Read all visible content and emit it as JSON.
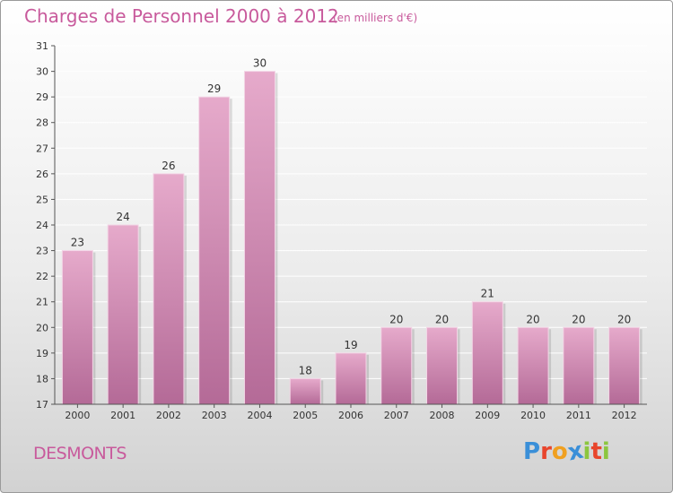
{
  "header": {
    "title": "Charges de Personnel 2000 à 2012",
    "subtitle": "(en milliers d'€)"
  },
  "footer": {
    "commune": "DESMONTS",
    "logo_text": "Proxiti",
    "logo_colors": [
      "#3a8fd8",
      "#e8452c",
      "#f0a020",
      "#3a8fd8",
      "#8cc63f",
      "#e8452c",
      "#8cc63f"
    ]
  },
  "colors": {
    "accent": "#c85a9c",
    "bar_top": "#e6aacb",
    "bar_bottom": "#b46a97",
    "axis": "#555555"
  },
  "chart_data": {
    "type": "bar",
    "title": "Charges de Personnel 2000 à 2012",
    "subtitle": "(en milliers d'€)",
    "categories": [
      "2000",
      "2001",
      "2002",
      "2003",
      "2004",
      "2005",
      "2006",
      "2007",
      "2008",
      "2009",
      "2010",
      "2011",
      "2012"
    ],
    "values": [
      23,
      24,
      26,
      29,
      30,
      18,
      19,
      20,
      20,
      21,
      20,
      20,
      20
    ],
    "ylim": [
      17,
      31
    ],
    "yticks": [
      17,
      18,
      19,
      20,
      21,
      22,
      23,
      24,
      25,
      26,
      27,
      28,
      29,
      30,
      31
    ],
    "grid": true,
    "data_labels": true
  }
}
